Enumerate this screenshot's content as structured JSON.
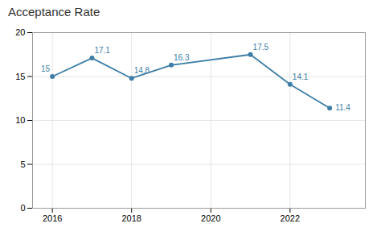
{
  "chart_data": {
    "type": "line",
    "title": "Acceptance Rate",
    "x": [
      2016,
      2017,
      2018,
      2019,
      2021,
      2022,
      2023
    ],
    "values": [
      15,
      17.1,
      14.8,
      16.3,
      17.5,
      14.1,
      11.4
    ],
    "color": "#3d7ea6",
    "marker": "circle",
    "data_labels": true,
    "xlim": [
      2015.5,
      2023.9
    ],
    "xticks": [
      2016,
      2018,
      2020,
      2022
    ],
    "ylim": [
      0,
      20
    ],
    "yticks": [
      0,
      5,
      10,
      15,
      20
    ],
    "grid": true
  }
}
